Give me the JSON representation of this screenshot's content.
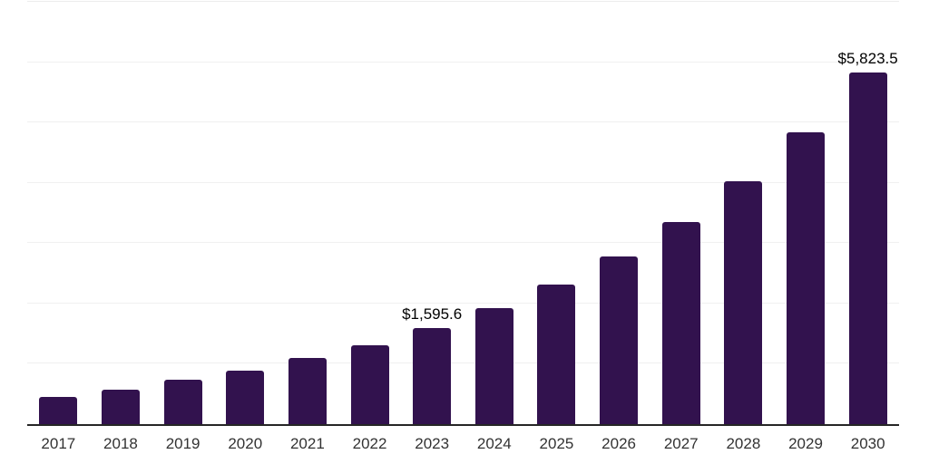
{
  "chart_data": {
    "type": "bar",
    "categories": [
      "2017",
      "2018",
      "2019",
      "2020",
      "2021",
      "2022",
      "2023",
      "2024",
      "2025",
      "2026",
      "2027",
      "2028",
      "2029",
      "2030"
    ],
    "values": [
      450,
      570,
      730,
      880,
      1090,
      1300,
      1595.6,
      1920,
      2310,
      2780,
      3345,
      4025,
      4840,
      5823.5
    ],
    "data_labels": {
      "2023": "$1,595.6",
      "2030": "$5,823.5"
    },
    "xlabel": "",
    "ylabel": "",
    "ylim": [
      0,
      7000
    ],
    "grid_step": 1000,
    "grid_on": true,
    "legend": "none",
    "colors": {
      "bar": "#32124E",
      "gridline": "#F0F0F0",
      "plot_top_line": "#ECECEC",
      "axis_line": "#262626",
      "value_label": "#000000",
      "tick_label": "#333333",
      "background": "#FFFFFF"
    }
  }
}
